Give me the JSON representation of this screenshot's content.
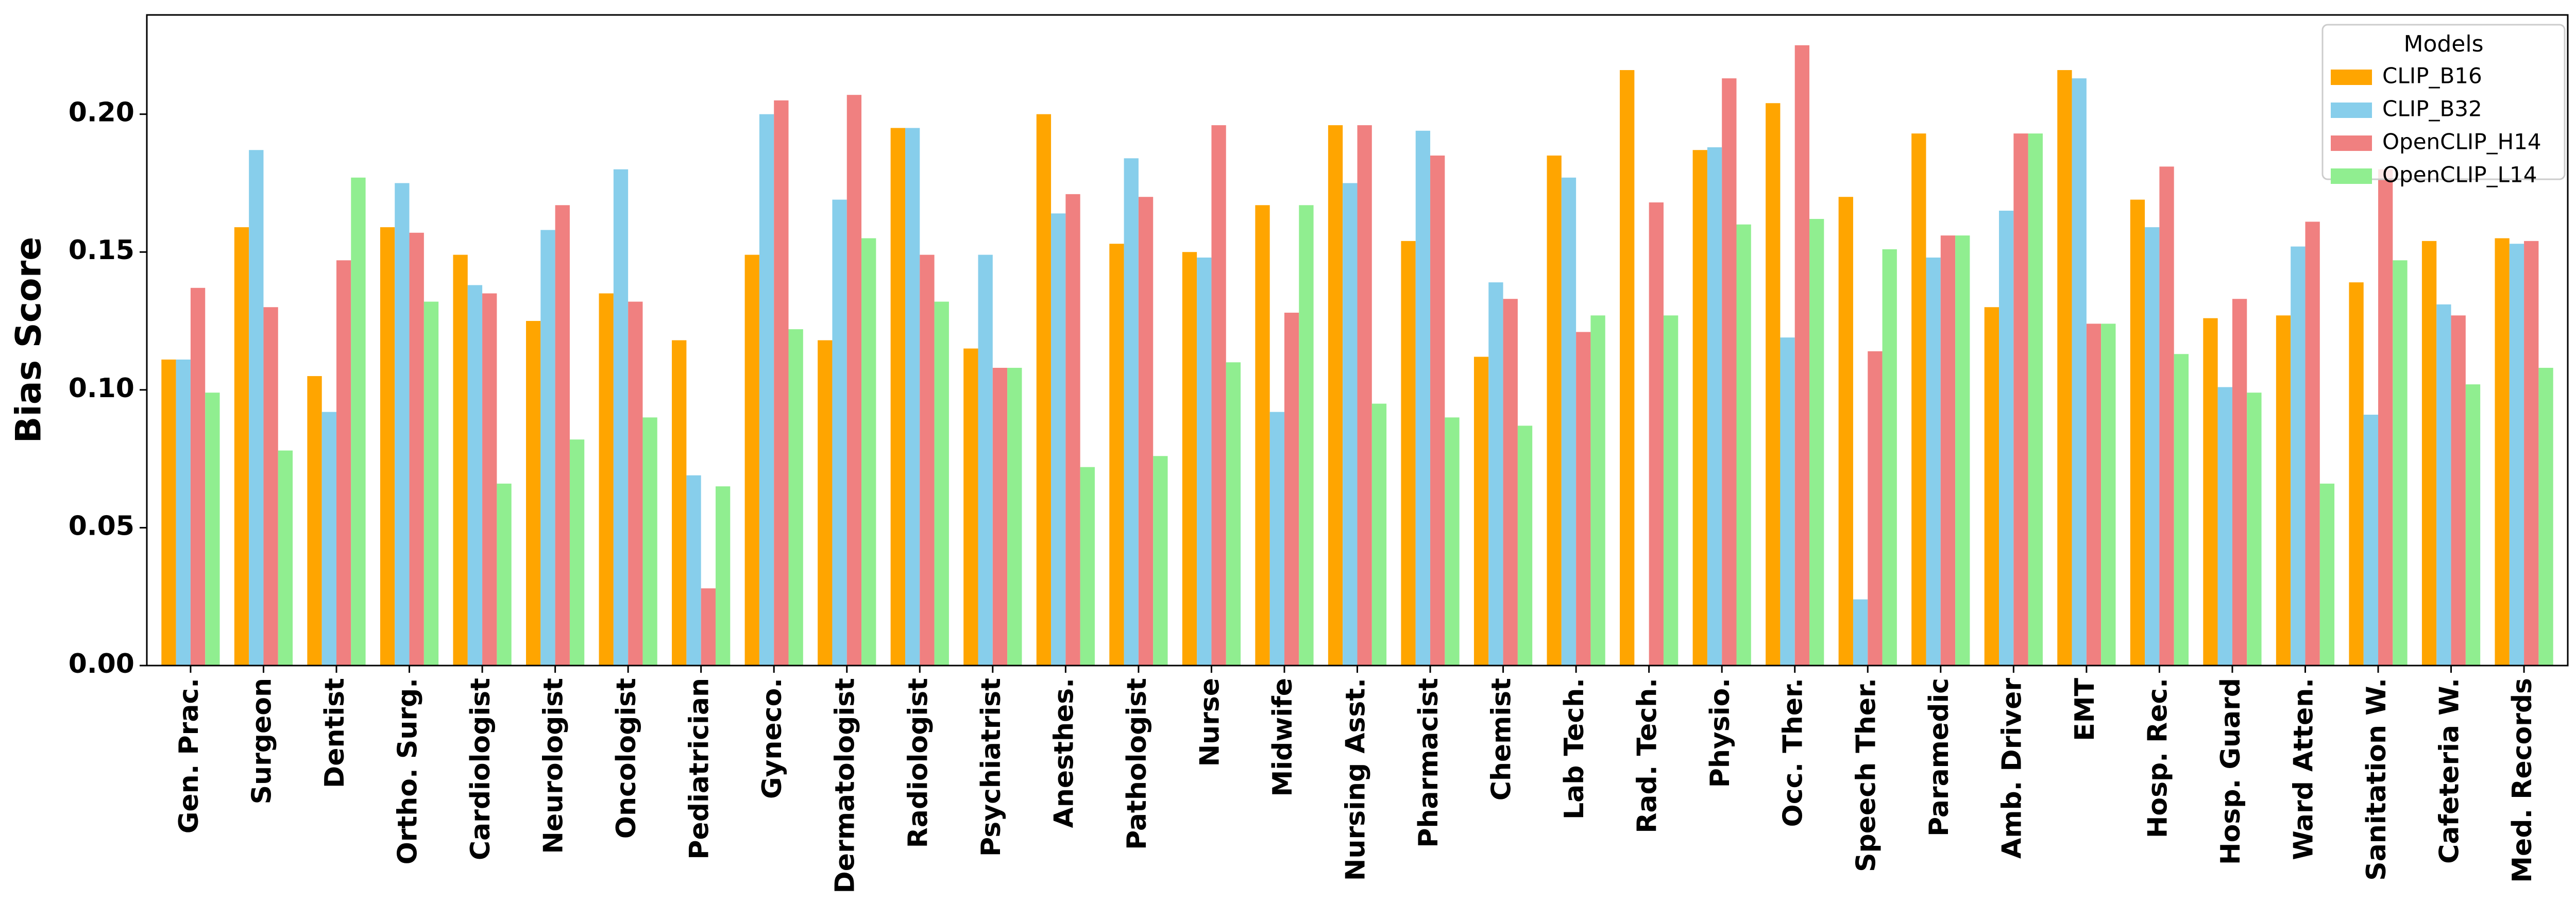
{
  "chart_data": {
    "type": "bar",
    "ylabel": "Bias Score",
    "categories": [
      "Gen. Prac.",
      "Surgeon",
      "Dentist",
      "Ortho. Surg.",
      "Cardiologist",
      "Neurologist",
      "Oncologist",
      "Pediatrician",
      "Gyneco.",
      "Dermatologist",
      "Radiologist",
      "Psychiatrist",
      "Anesthes.",
      "Pathologist",
      "Nurse",
      "Midwife",
      "Nursing Asst.",
      "Pharmacist",
      "Chemist",
      "Lab Tech.",
      "Rad. Tech.",
      "Physio.",
      "Occ. Ther.",
      "Speech Ther.",
      "Paramedic",
      "Amb. Driver",
      "EMT",
      "Hosp. Rec.",
      "Hosp. Guard",
      "Ward Atten.",
      "Sanitation W.",
      "Cafeteria W.",
      "Med. Records"
    ],
    "series": [
      {
        "name": "CLIP_B16",
        "color": "#ffa500",
        "values": [
          0.111,
          0.159,
          0.105,
          0.159,
          0.149,
          0.125,
          0.135,
          0.118,
          0.149,
          0.118,
          0.195,
          0.115,
          0.2,
          0.153,
          0.15,
          0.167,
          0.196,
          0.154,
          0.112,
          0.185,
          0.216,
          0.187,
          0.204,
          0.17,
          0.193,
          0.13,
          0.216,
          0.169,
          0.126,
          0.127,
          0.139,
          0.154,
          0.155
        ]
      },
      {
        "name": "CLIP_B32",
        "color": "#87ceeb",
        "values": [
          0.111,
          0.187,
          0.092,
          0.175,
          0.138,
          0.158,
          0.18,
          0.069,
          0.2,
          0.169,
          0.195,
          0.149,
          0.164,
          0.184,
          0.148,
          0.092,
          0.175,
          0.194,
          0.139,
          0.177,
          0,
          0.188,
          0.119,
          0.024,
          0.148,
          0.165,
          0.213,
          0.159,
          0.101,
          0.152,
          0.091,
          0.131,
          0.153
        ]
      },
      {
        "name": "OpenCLIP_H14",
        "color": "#f08080",
        "values": [
          0.137,
          0.13,
          0.147,
          0.157,
          0.135,
          0.167,
          0.132,
          0.028,
          0.205,
          0.207,
          0.149,
          0.108,
          0.171,
          0.17,
          0.196,
          0.128,
          0.196,
          0.185,
          0.133,
          0.121,
          0.168,
          0.213,
          0.225,
          0.114,
          0.156,
          0.193,
          0.124,
          0.181,
          0.133,
          0.161,
          0.18,
          0.127,
          0.154
        ]
      },
      {
        "name": "OpenCLIP_L14",
        "color": "#90ee90",
        "values": [
          0.099,
          0.078,
          0.177,
          0.132,
          0.066,
          0.082,
          0.09,
          0.065,
          0.122,
          0.155,
          0.132,
          0.108,
          0.072,
          0.076,
          0.11,
          0.167,
          0.095,
          0.09,
          0.087,
          0.127,
          0.127,
          0.16,
          0.162,
          0.151,
          0.156,
          0.193,
          0.124,
          0.113,
          0.099,
          0.066,
          0.147,
          0.102,
          0.108
        ]
      }
    ],
    "ylim": [
      0,
      0.236
    ],
    "yticks": [
      {
        "value": 0,
        "label": "0.00"
      },
      {
        "value": 0.05,
        "label": "0.05"
      },
      {
        "value": 0.1,
        "label": "0.10"
      },
      {
        "value": 0.15,
        "label": "0.15"
      },
      {
        "value": 0.2,
        "label": "0.20"
      }
    ],
    "legend_title": "Models",
    "legend_position": "upper right"
  }
}
